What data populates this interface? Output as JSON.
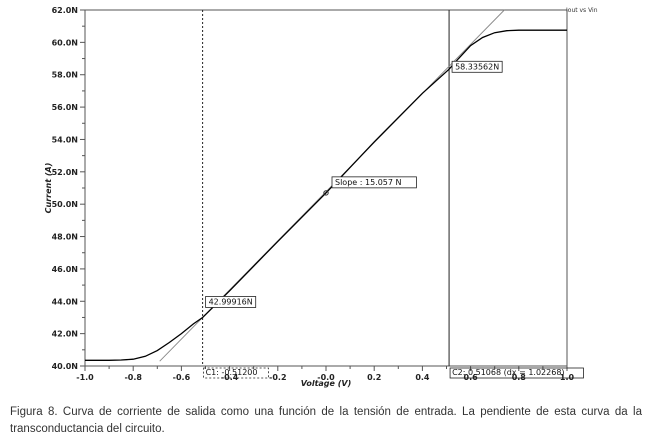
{
  "chart_data": {
    "type": "line",
    "title": "",
    "xlabel": "Voltage (V)",
    "ylabel": "Current (A)",
    "xlim": [
      -1.0,
      1.0
    ],
    "ylim": [
      40.0,
      62.0
    ],
    "x_ticks": [
      -1.0,
      -0.8,
      -0.6,
      -0.4,
      -0.2,
      0.0,
      0.2,
      0.4,
      0.6,
      0.8,
      1.0
    ],
    "x_tick_labels": [
      "-1.0",
      "-0.8",
      "-0.6",
      "-0.4",
      "-0.2",
      "-0.0",
      "0.2",
      "0.4",
      "0.6",
      "0.8",
      "1.0"
    ],
    "y_ticks": [
      40,
      42,
      44,
      46,
      48,
      50,
      52,
      54,
      56,
      58,
      60,
      62
    ],
    "y_tick_labels": [
      "40.0N",
      "42.0N",
      "44.0N",
      "46.0N",
      "48.0N",
      "50.0N",
      "52.0N",
      "54.0N",
      "56.0N",
      "58.0N",
      "60.0N",
      "62.0N"
    ],
    "grid": false,
    "legend": "top-right",
    "series": [
      {
        "name": "Iout vs Vin",
        "color": "#000000",
        "x": [
          -1.0,
          -0.9,
          -0.85,
          -0.8,
          -0.75,
          -0.7,
          -0.65,
          -0.6,
          -0.55,
          -0.512,
          -0.4,
          -0.2,
          0.0,
          0.2,
          0.4,
          0.5107,
          0.55,
          0.6,
          0.65,
          0.7,
          0.75,
          0.8,
          0.9,
          1.0
        ],
        "y": [
          40.35,
          40.35,
          40.37,
          40.42,
          40.6,
          40.95,
          41.45,
          42.0,
          42.6,
          43.0,
          44.65,
          47.7,
          50.7,
          53.85,
          56.85,
          58.34,
          59.0,
          59.8,
          60.3,
          60.6,
          60.72,
          60.75,
          60.75,
          60.75
        ]
      }
    ],
    "tangent": {
      "color": "#888888",
      "x": [
        -0.69,
        0.74
      ],
      "y": [
        40.3,
        62.0
      ]
    },
    "cursors": [
      {
        "label": "C1: -0.51200",
        "x": -0.512
      },
      {
        "label": "C2: 0.51068 (dx = 1.02268)",
        "x": 0.51068
      }
    ],
    "annotations": [
      {
        "text": "42.99916N",
        "x": -0.512,
        "y": 42.99916
      },
      {
        "text": "58.33562N",
        "x": 0.51068,
        "y": 58.33562
      },
      {
        "text": "Slope : 15.057 N",
        "x": 0.0,
        "y": 50.7
      }
    ]
  },
  "caption": "Figura 8. Curva de corriente de salida como una función de la tensión de entrada. La pendiente de esta curva da la transconductancia del circuito."
}
